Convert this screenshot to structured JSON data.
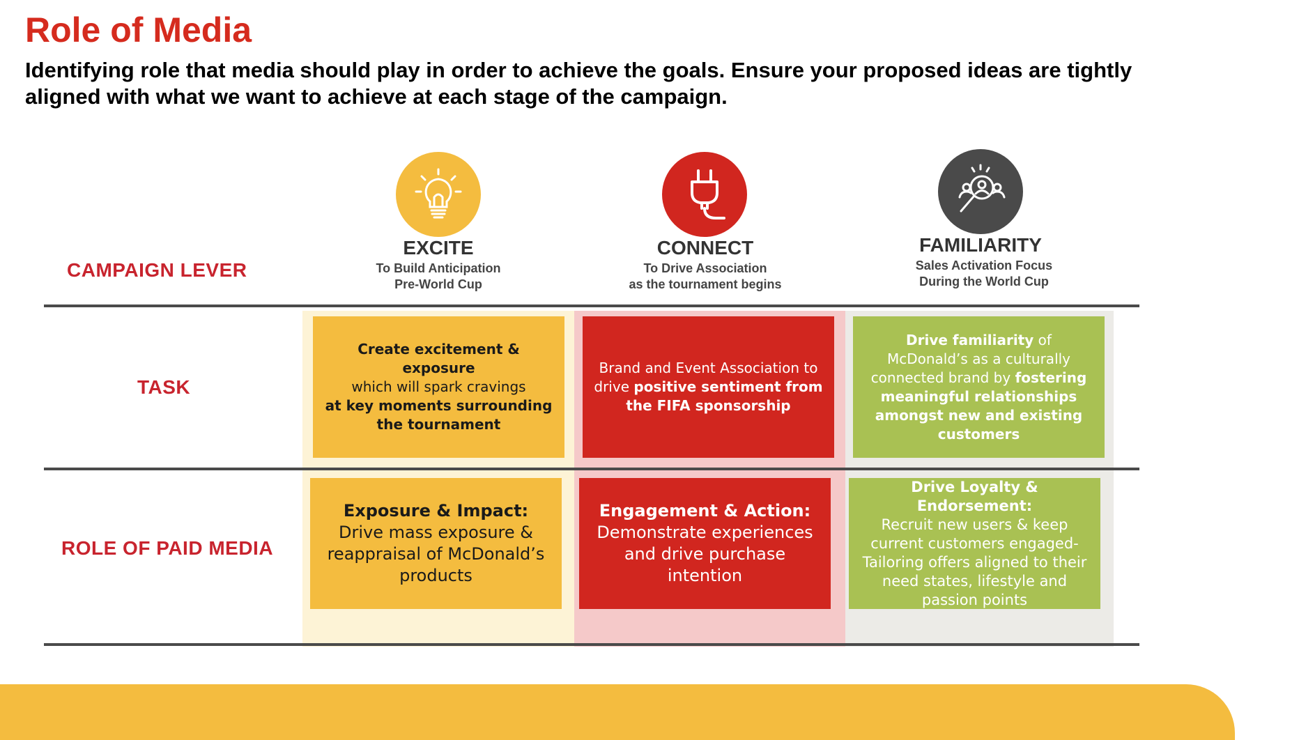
{
  "header": {
    "title": "Role of Media",
    "subtitle": "Identifying role that media should play in order to achieve the goals. Ensure your proposed ideas are tightly aligned with what we want to achieve at each stage of the campaign."
  },
  "rows": {
    "campaign_lever": "CAMPAIGN LEVER",
    "task": "TASK",
    "role_of_paid_media": "ROLE OF PAID MEDIA"
  },
  "levers": [
    {
      "name": "EXCITE",
      "sub1": "To Build Anticipation",
      "sub2": "Pre-World Cup",
      "icon": "lightbulb-icon",
      "color": "#f4bc3f",
      "task": {
        "p1": "Create excitement & exposure",
        "p2": "which will spark cravings",
        "p3": "at key moments surrounding the tournament"
      },
      "media": {
        "heading": "Exposure & Impact:",
        "body": "Drive mass exposure & reappraisal of McDonald’s products"
      }
    },
    {
      "name": "CONNECT",
      "sub1": "To Drive Association",
      "sub2": "as the tournament begins",
      "icon": "plug-icon",
      "color": "#d1261f",
      "task": {
        "p1": "Brand and Event Association to drive ",
        "p2": "positive sentiment from the FIFA sponsorship"
      },
      "media": {
        "heading": "Engagement & Action:",
        "body": "Demonstrate experiences and drive purchase intention"
      }
    },
    {
      "name": "FAMILIARITY",
      "sub1": "Sales Activation Focus",
      "sub2": "During the World Cup",
      "icon": "audience-search-icon",
      "color": "#4a4a4a",
      "task": {
        "p1": "Drive familiarity",
        "p2": " of McDonald’s as a culturally connected brand by ",
        "p3": "fostering meaningful relationships amongst new and existing customers"
      },
      "media": {
        "heading": "Drive Loyalty & Endorsement:",
        "body": "Recruit new users & keep current customers engaged- Tailoring offers aligned to their need states, lifestyle and passion points"
      }
    }
  ]
}
